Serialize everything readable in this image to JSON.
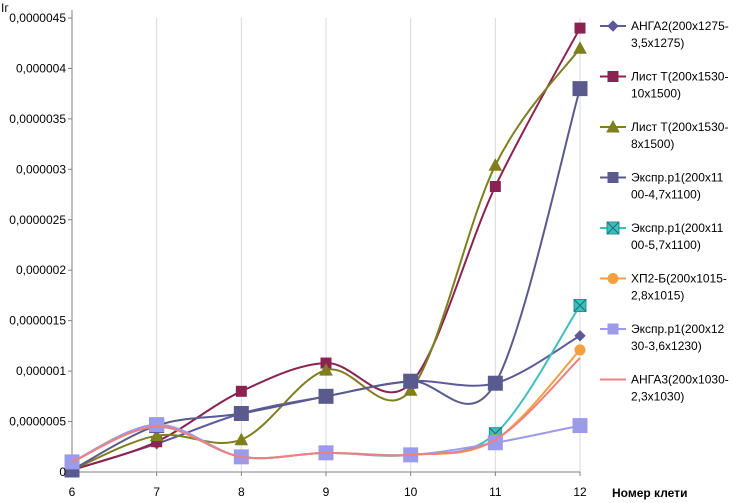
{
  "chart_data": {
    "type": "line",
    "title": "",
    "ylabel": "Iг",
    "xlabel": "Номер клети",
    "x": [
      6,
      7,
      8,
      9,
      10,
      11,
      12
    ],
    "xlim": [
      6,
      12
    ],
    "ylim": [
      0,
      4.5e-06
    ],
    "y_ticks": [
      0,
      5e-07,
      1e-06,
      1.5e-06,
      2e-06,
      2.5e-06,
      3e-06,
      3.5e-06,
      4e-06,
      4.5e-06
    ],
    "y_tick_labels": [
      "0",
      "0,0000005",
      "0,000001",
      "0,0000015",
      "0,000002",
      "0,0000025",
      "0,000003",
      "0,0000035",
      "0,000004",
      "0,0000045"
    ],
    "x_tick_labels": [
      "6",
      "7",
      "8",
      "9",
      "10",
      "11",
      "12"
    ],
    "grid": "vertical",
    "legend_position": "right",
    "series": [
      {
        "name": "АНГА2(200х1275-3,5х1275)",
        "legend_lines": [
          "АНГА2(200х1275-",
          "3,5х1275)"
        ],
        "color": "#5b5a9a",
        "marker": "diamond",
        "values": [
          2e-08,
          2.8e-07,
          5.8e-07,
          7.5e-07,
          9e-07,
          8.8e-07,
          1.35e-06
        ]
      },
      {
        "name": "Лист Т(200х1530-10х1500)",
        "legend_lines": [
          "Лист Т(200х1530-",
          "10х1500)"
        ],
        "color": "#8b2252",
        "marker": "square",
        "values": [
          2e-08,
          3e-07,
          8e-07,
          1.08e-06,
          8.8e-07,
          2.83e-06,
          4.4e-06
        ]
      },
      {
        "name": "Лист Т(200х1530-8х1500)",
        "legend_lines": [
          "Лист Т(200х1530-",
          "8х1500)"
        ],
        "color": "#7f7f1f",
        "marker": "triangle",
        "values": [
          2e-08,
          3.6e-07,
          3.2e-07,
          1.01e-06,
          8.1e-07,
          3.04e-06,
          4.2e-06
        ]
      },
      {
        "name": "Экспр.р1(200х1100-4,7х1100)",
        "legend_lines": [
          "Экспр.р1(200х11",
          "00-4,7х1100)"
        ],
        "color": "#5a5a8e",
        "marker": "bigsquare",
        "values": [
          2e-08,
          4.6e-07,
          5.8e-07,
          7.5e-07,
          9e-07,
          8.8e-07,
          3.8e-06
        ]
      },
      {
        "name": "Экспр.р1(200х1100-5,7х1100)",
        "legend_lines": [
          "Экспр.р1(200х11",
          "00-5,7х1100)"
        ],
        "color": "#3cbfbf",
        "marker": "xsquare",
        "values": [
          1e-07,
          4.5e-07,
          1.5e-07,
          1.9e-07,
          1.7e-07,
          3.8e-07,
          1.65e-06
        ]
      },
      {
        "name": "ХП2-Б(200х1015-2,8х1015)",
        "legend_lines": [
          "ХП2-Б(200х1015-",
          "2,8х1015)"
        ],
        "color": "#f4a040",
        "marker": "circle",
        "values": [
          1e-07,
          4.5e-07,
          1.5e-07,
          1.9e-07,
          1.7e-07,
          3.2e-07,
          1.21e-06
        ]
      },
      {
        "name": "Экспр.р1(200х1230-3,6х1230)",
        "legend_lines": [
          "Экспр.р1(200х12",
          "30-3,6х1230)"
        ],
        "color": "#9b9bea",
        "marker": "lavsquare",
        "values": [
          1e-07,
          4.7e-07,
          1.5e-07,
          1.9e-07,
          1.7e-07,
          2.9e-07,
          4.6e-07
        ]
      },
      {
        "name": "АНГА3(200х1030-2,3х1030)",
        "legend_lines": [
          "АНГА3(200х1030-",
          "2,3х1030)"
        ],
        "color": "#f08080",
        "marker": "none",
        "values": [
          1e-07,
          4.5e-07,
          1.5e-07,
          1.9e-07,
          1.7e-07,
          3.2e-07,
          1.13e-06
        ]
      }
    ]
  }
}
